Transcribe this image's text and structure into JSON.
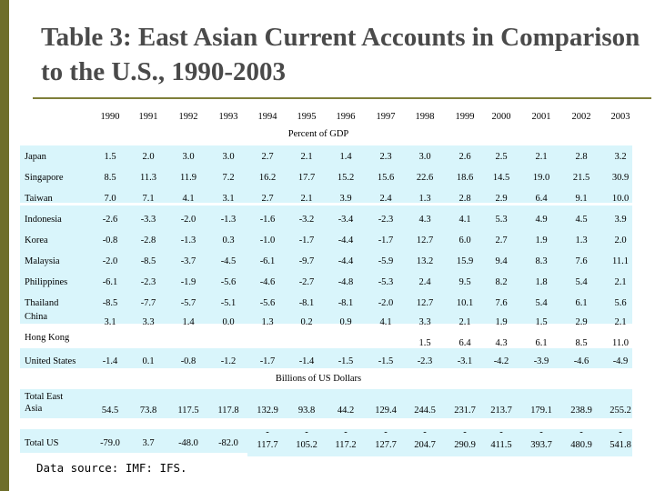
{
  "title": "Table 3: East Asian Current Accounts in Comparison to the U.S., 1990-2003",
  "years": [
    "1990",
    "1991",
    "1992",
    "1993",
    "1994",
    "1995",
    "1996",
    "1997",
    "1998",
    "1999",
    "2000",
    "2001",
    "2002",
    "2003"
  ],
  "section_percent": "Percent of GDP",
  "section_billions": "Billions of US Dollars",
  "band_color": "#d9f5fb",
  "accent_color": "#6e6e2a",
  "percent_rows": [
    {
      "label": "Japan",
      "values": [
        "1.5",
        "2.0",
        "3.0",
        "3.0",
        "2.7",
        "2.1",
        "1.4",
        "2.3",
        "3.0",
        "2.6",
        "2.5",
        "2.1",
        "2.8",
        "3.2"
      ]
    },
    {
      "label": "Singapore",
      "values": [
        "8.5",
        "11.3",
        "11.9",
        "7.2",
        "16.2",
        "17.7",
        "15.2",
        "15.6",
        "22.6",
        "18.6",
        "14.5",
        "19.0",
        "21.5",
        "30.9"
      ]
    },
    {
      "label": "Taiwan",
      "values": [
        "7.0",
        "7.1",
        "4.1",
        "3.1",
        "2.7",
        "2.1",
        "3.9",
        "2.4",
        "1.3",
        "2.8",
        "2.9",
        "6.4",
        "9.1",
        "10.0"
      ]
    },
    {
      "label": "Indonesia",
      "values": [
        "-2.6",
        "-3.3",
        "-2.0",
        "-1.3",
        "-1.6",
        "-3.2",
        "-3.4",
        "-2.3",
        "4.3",
        "4.1",
        "5.3",
        "4.9",
        "4.5",
        "3.9"
      ]
    },
    {
      "label": "Korea",
      "values": [
        "-0.8",
        "-2.8",
        "-1.3",
        "0.3",
        "-1.0",
        "-1.7",
        "-4.4",
        "-1.7",
        "12.7",
        "6.0",
        "2.7",
        "1.9",
        "1.3",
        "2.0"
      ]
    },
    {
      "label": "Malaysia",
      "values": [
        "-2.0",
        "-8.5",
        "-3.7",
        "-4.5",
        "-6.1",
        "-9.7",
        "-4.4",
        "-5.9",
        "13.2",
        "15.9",
        "9.4",
        "8.3",
        "7.6",
        "11.1"
      ]
    },
    {
      "label": "Philippines",
      "values": [
        "-6.1",
        "-2.3",
        "-1.9",
        "-5.6",
        "-4.6",
        "-2.7",
        "-4.8",
        "-5.3",
        "2.4",
        "9.5",
        "8.2",
        "1.8",
        "5.4",
        "2.1"
      ]
    },
    {
      "label": "Thailand",
      "values": [
        "-8.5",
        "-7.7",
        "-5.7",
        "-5.1",
        "-5.6",
        "-8.1",
        "-8.1",
        "-2.0",
        "12.7",
        "10.1",
        "7.6",
        "5.4",
        "6.1",
        "5.6"
      ]
    },
    {
      "label": "China",
      "values": [
        "3.1",
        "3.3",
        "1.4",
        "0.0",
        "1.3",
        "0.2",
        "0.9",
        "4.1",
        "3.3",
        "2.1",
        "1.9",
        "1.5",
        "2.9",
        "2.1"
      ]
    },
    {
      "label": "Hong Kong",
      "values": [
        "",
        "",
        "",
        "",
        "",
        "",
        "",
        "",
        "1.5",
        "6.4",
        "4.3",
        "6.1",
        "8.5",
        "11.0"
      ]
    },
    {
      "label": "United States",
      "values": [
        "-1.4",
        "0.1",
        "-0.8",
        "-1.2",
        "-1.7",
        "-1.4",
        "-1.5",
        "-1.5",
        "-2.3",
        "-3.1",
        "-4.2",
        "-3.9",
        "-4.6",
        "-4.9"
      ]
    }
  ],
  "billion_rows": [
    {
      "label_line1": "Total East",
      "label_line2": "Asia",
      "values": [
        "54.5",
        "73.8",
        "117.5",
        "117.8",
        "132.9",
        "93.8",
        "44.2",
        "129.4",
        "244.5",
        "231.7",
        "213.7",
        "179.1",
        "238.9",
        "255.2"
      ]
    },
    {
      "label_line1": "Total US",
      "label_line2": "",
      "values_top": [
        "",
        "",
        "",
        "",
        "-",
        "-",
        "-",
        "-",
        "-",
        "-",
        "-",
        "-",
        "-",
        "-"
      ],
      "values": [
        "-79.0",
        "3.7",
        "-48.0",
        "-82.0",
        "117.7",
        "105.2",
        "117.2",
        "127.7",
        "204.7",
        "290.9",
        "411.5",
        "393.7",
        "480.9",
        "541.8"
      ]
    }
  ],
  "source": "Data source: IMF: IFS."
}
